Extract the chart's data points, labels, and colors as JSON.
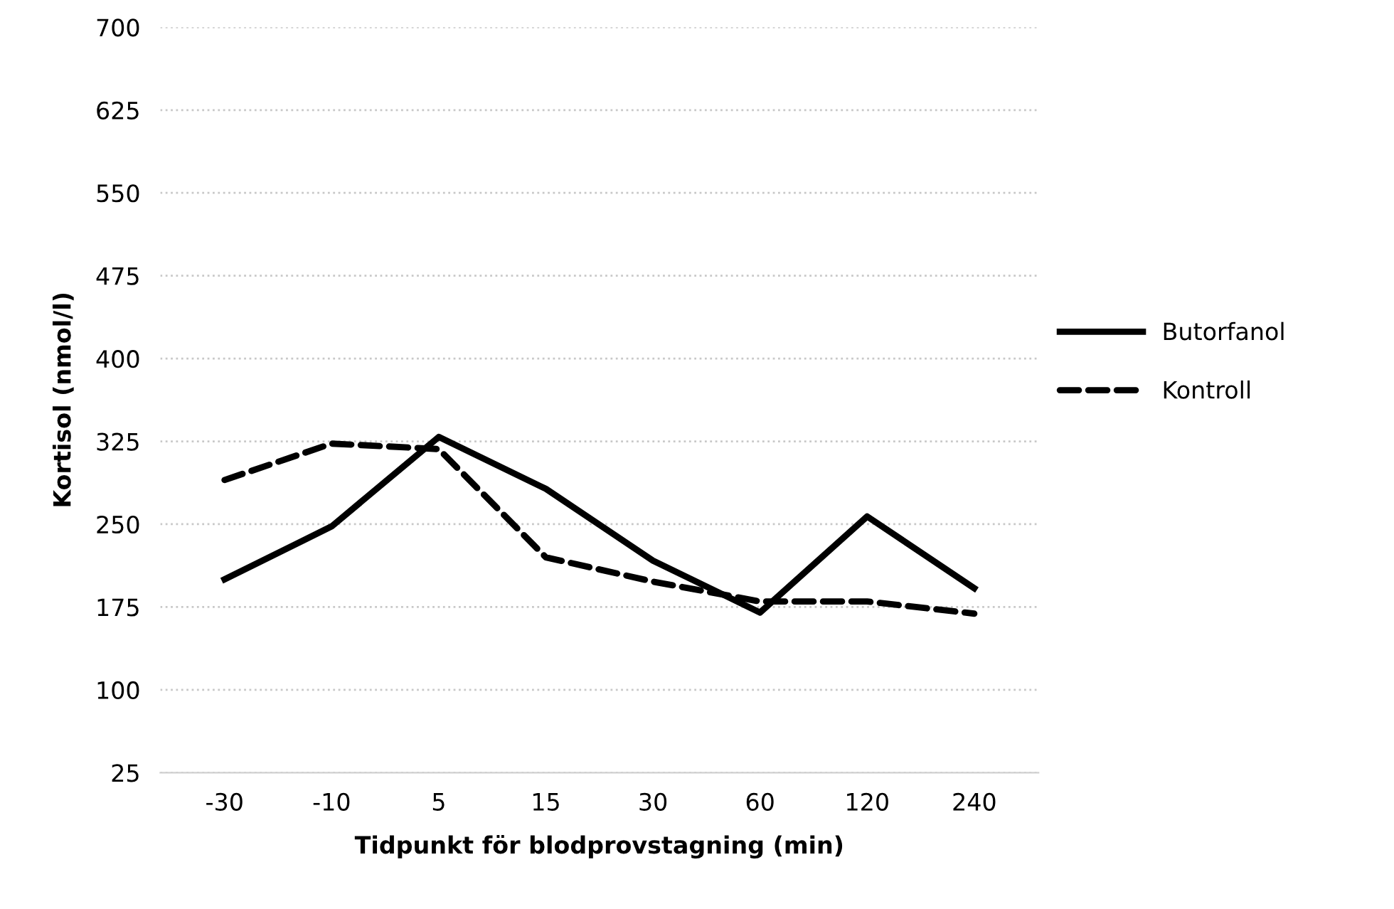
{
  "chart_data": {
    "type": "line",
    "xlabel": "Tidpunkt för blodprovstagning (min)",
    "ylabel": "Kortisol (nmol/l)",
    "categories": [
      "-30",
      "-10",
      "5",
      "15",
      "30",
      "60",
      "120",
      "240"
    ],
    "series": [
      {
        "name": "Butorfanol",
        "color": "#000000",
        "line_style": "solid",
        "values": [
          200,
          248,
          329,
          282,
          217,
          170,
          257,
          192
        ]
      },
      {
        "name": "Kontroll",
        "color": "#000000",
        "line_style": "dashed",
        "values": [
          290,
          323,
          318,
          220,
          198,
          180,
          180,
          169
        ]
      }
    ],
    "ylim": [
      25,
      700
    ],
    "yticks": [
      25,
      100,
      175,
      250,
      325,
      400,
      475,
      550,
      625,
      700
    ],
    "grid": "y",
    "legend": "right",
    "marker": "none"
  }
}
